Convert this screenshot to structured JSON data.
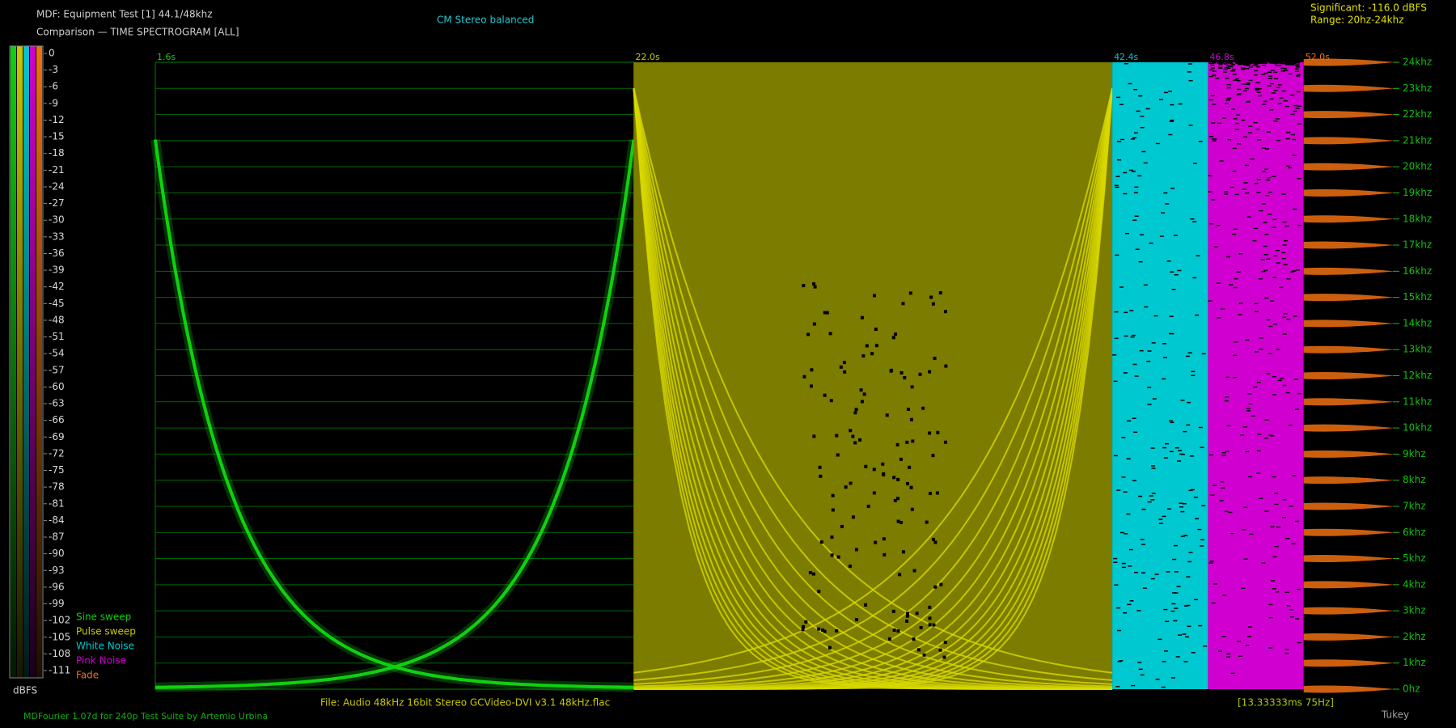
{
  "chart_data": {
    "type": "spectrogram",
    "title": "MDF: Equipment Test [1] 44.1/48khz",
    "subtitle": "Comparison — TIME SPECTROGRAM [ALL]",
    "annotations": {
      "mode": "CM Stereo balanced",
      "significant": "Significant: -116.0 dBFS",
      "range": "Range: 20hz-24khz",
      "file": "File: Audio   48kHz 16bit Stereo GCVideo-DVI v3.1 48kHz.flac",
      "resolution": "[13.33333ms 75Hz]",
      "footer": "MDFourier 1.07d for 240p Test Suite by Artemio Urbina",
      "window": "Tukey"
    },
    "series": [
      {
        "name": "Sine sweep",
        "color": "#10d010",
        "start": {
          "value": 1.6,
          "label": "1.6s"
        }
      },
      {
        "name": "Pulse sweep",
        "color": "#c8c800",
        "start": {
          "value": 22.0,
          "label": "22.0s"
        }
      },
      {
        "name": "White Noise",
        "color": "#00c8d0",
        "start": {
          "value": 42.4,
          "label": "42.4s"
        }
      },
      {
        "name": "Pink Noise",
        "color": "#d000d0",
        "start": {
          "value": 46.8,
          "label": "46.8s"
        }
      },
      {
        "name": "Fade",
        "color": "#f07010",
        "start": {
          "value": 52.0,
          "label": "52.0s"
        }
      }
    ],
    "ylim": [
      0,
      24000
    ],
    "yticks": [
      {
        "value": 0,
        "label": "0hz"
      },
      {
        "value": 1000,
        "label": "1khz"
      },
      {
        "value": 2000,
        "label": "2khz"
      },
      {
        "value": 3000,
        "label": "3khz"
      },
      {
        "value": 4000,
        "label": "4khz"
      },
      {
        "value": 5000,
        "label": "5khz"
      },
      {
        "value": 6000,
        "label": "6khz"
      },
      {
        "value": 7000,
        "label": "7khz"
      },
      {
        "value": 8000,
        "label": "8khz"
      },
      {
        "value": 9000,
        "label": "9khz"
      },
      {
        "value": 10000,
        "label": "10khz"
      },
      {
        "value": 11000,
        "label": "11khz"
      },
      {
        "value": 12000,
        "label": "12khz"
      },
      {
        "value": 13000,
        "label": "13khz"
      },
      {
        "value": 14000,
        "label": "14khz"
      },
      {
        "value": 15000,
        "label": "15khz"
      },
      {
        "value": 16000,
        "label": "16khz"
      },
      {
        "value": 17000,
        "label": "17khz"
      },
      {
        "value": 18000,
        "label": "18khz"
      },
      {
        "value": 19000,
        "label": "19khz"
      },
      {
        "value": 20000,
        "label": "20khz"
      },
      {
        "value": 21000,
        "label": "21khz"
      },
      {
        "value": 22000,
        "label": "22khz"
      },
      {
        "value": 23000,
        "label": "23khz"
      },
      {
        "value": 24000,
        "label": "24khz"
      }
    ],
    "grid": true,
    "colorbar": {
      "label": "dBFS",
      "lim": [
        0,
        -111
      ],
      "ticks": [
        0,
        -3,
        -6,
        -9,
        -12,
        -15,
        -18,
        -21,
        -24,
        -27,
        -30,
        -33,
        -36,
        -39,
        -42,
        -45,
        -48,
        -51,
        -54,
        -57,
        -60,
        -63,
        -66,
        -69,
        -72,
        -75,
        -78,
        -81,
        -84,
        -87,
        -90,
        -93,
        -96,
        -99,
        -102,
        -105,
        -108,
        -111
      ]
    }
  }
}
